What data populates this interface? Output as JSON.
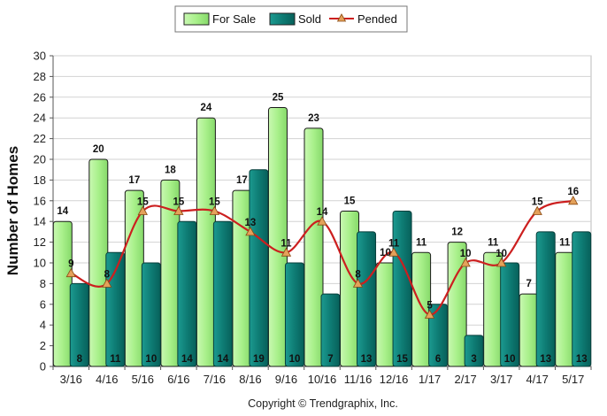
{
  "chart_data": {
    "type": "bar",
    "ylabel": "Number of Homes",
    "ylim": [
      0,
      30
    ],
    "yticks": [
      0,
      2,
      4,
      6,
      8,
      10,
      12,
      14,
      16,
      18,
      20,
      22,
      24,
      26,
      28,
      30
    ],
    "categories": [
      "3/16",
      "4/16",
      "5/16",
      "6/16",
      "7/16",
      "8/16",
      "9/16",
      "10/16",
      "11/16",
      "12/16",
      "1/17",
      "2/17",
      "3/17",
      "4/17",
      "5/17"
    ],
    "series": [
      {
        "name": "For Sale",
        "kind": "bar",
        "color": "#a8f08a",
        "values": [
          14,
          20,
          17,
          18,
          24,
          17,
          25,
          23,
          15,
          10,
          11,
          12,
          11,
          7,
          11
        ]
      },
      {
        "name": "Sold",
        "kind": "bar",
        "color": "#0e7c74",
        "values": [
          8,
          11,
          10,
          14,
          14,
          19,
          10,
          7,
          13,
          15,
          6,
          3,
          10,
          13,
          13
        ]
      },
      {
        "name": "Pended",
        "kind": "line",
        "color": "#cc1f1f",
        "values": [
          9,
          8,
          15,
          15,
          15,
          13,
          11,
          14,
          8,
          11,
          5,
          10,
          10,
          15,
          16
        ]
      }
    ],
    "legend_position": "top-center",
    "grid": "horizontal",
    "footer": "Copyright © Trendgraphix, Inc."
  }
}
